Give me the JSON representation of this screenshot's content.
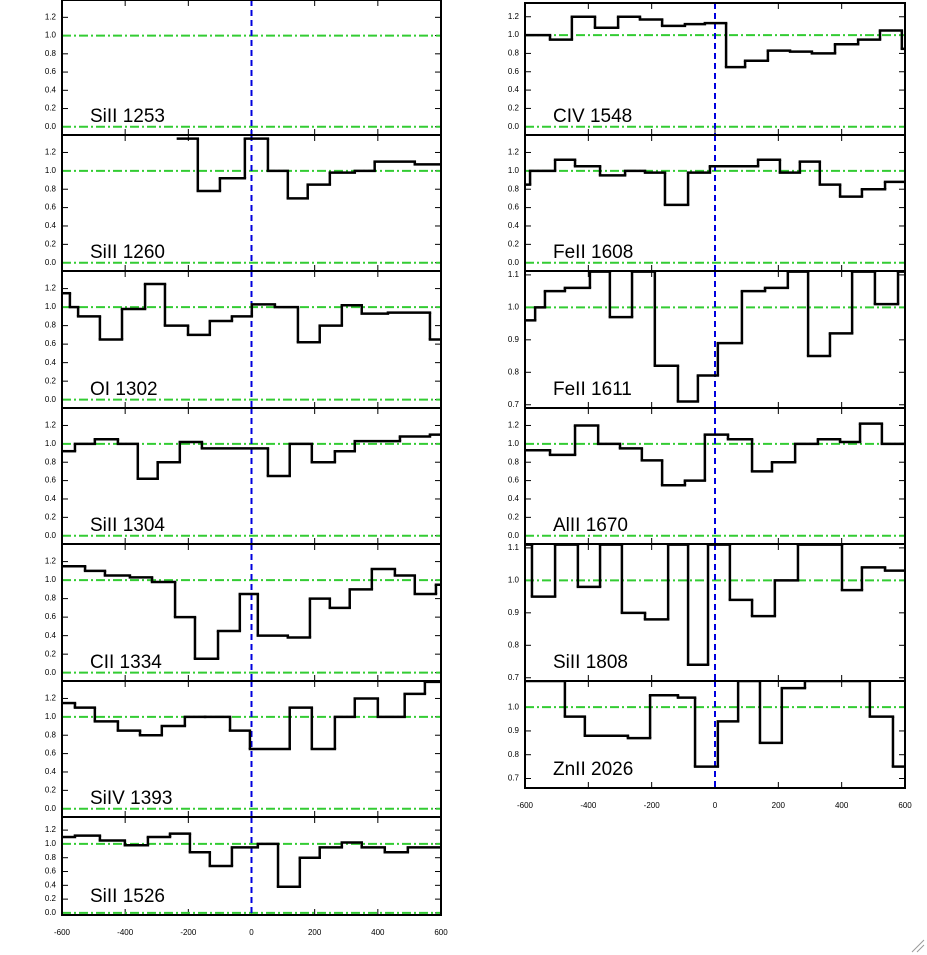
{
  "chart_data": [
    {
      "type": "step",
      "label": "SiII 1253",
      "x": [],
      "values": [],
      "xlim": [
        -600,
        600
      ],
      "ylim": [
        -0.09,
        1.39
      ],
      "xticks": [
        -600,
        -400,
        -200,
        0,
        200,
        400,
        600
      ],
      "show_xticklabels": false,
      "yticks": [
        {
          "value": 0,
          "label": "0.0"
        },
        0.2,
        0.4,
        0.6,
        0.8,
        {
          "value": 1,
          "label": "1.0"
        },
        1.2
      ],
      "hlines": [
        0,
        1
      ],
      "vline": 0,
      "color": "#000000",
      "hline_color": "#33cc33",
      "vline_color": "#0000dd"
    },
    {
      "type": "step",
      "label": "SiII 1260",
      "x": [
        -233,
        -170,
        -100,
        -21,
        52,
        115,
        178,
        248,
        327,
        390,
        517
      ],
      "values": [
        1.35,
        0.78,
        0.92,
        1.35,
        1.0,
        0.7,
        0.85,
        0.98,
        1.0,
        1.1,
        1.07
      ],
      "xlim": [
        -600,
        600
      ],
      "ylim": [
        -0.09,
        1.39
      ],
      "xticks": [
        -600,
        -400,
        -200,
        0,
        200,
        400,
        600
      ],
      "show_xticklabels": false,
      "yticks": [
        {
          "value": 0,
          "label": "0.0"
        },
        0.2,
        0.4,
        0.6,
        0.8,
        {
          "value": 1,
          "label": "1.0"
        },
        1.2
      ],
      "hlines": [
        0,
        1
      ],
      "vline": 0,
      "color": "#000000",
      "hline_color": "#33cc33",
      "vline_color": "#0000dd"
    },
    {
      "type": "step",
      "label": "OI 1302",
      "x": [
        -600,
        -575,
        -549,
        -480,
        -410,
        -337,
        -274,
        -201,
        -132,
        -62,
        1,
        74,
        147,
        216,
        286,
        349,
        432,
        565
      ],
      "values": [
        1.15,
        1.0,
        0.9,
        0.65,
        0.98,
        1.25,
        0.8,
        0.7,
        0.85,
        0.9,
        1.03,
        1.0,
        0.62,
        0.8,
        1.02,
        0.93,
        0.94,
        0.65
      ],
      "xlim": [
        -600,
        600
      ],
      "ylim": [
        -0.09,
        1.39
      ],
      "xticks": [
        -600,
        -400,
        -200,
        0,
        200,
        400,
        600
      ],
      "show_xticklabels": false,
      "yticks": [
        {
          "value": 0,
          "label": "0.0"
        },
        0.2,
        0.4,
        0.6,
        0.8,
        {
          "value": 1,
          "label": "1.0"
        },
        1.2
      ],
      "hlines": [
        0,
        1
      ],
      "vline": 0,
      "color": "#000000",
      "hline_color": "#33cc33",
      "vline_color": "#0000dd"
    },
    {
      "type": "step",
      "label": "SiII 1304",
      "x": [
        -600,
        -559,
        -496,
        -423,
        -360,
        -297,
        -227,
        -157,
        52,
        121,
        191,
        264,
        327,
        470,
        565
      ],
      "values": [
        0.92,
        1.0,
        1.05,
        1.0,
        0.62,
        0.8,
        1.02,
        0.95,
        0.65,
        1.0,
        0.8,
        0.92,
        1.03,
        1.08,
        1.1
      ],
      "xlim": [
        -600,
        600
      ],
      "ylim": [
        -0.09,
        1.39
      ],
      "xticks": [
        -600,
        -400,
        -200,
        0,
        200,
        400,
        600
      ],
      "show_xticklabels": false,
      "yticks": [
        {
          "value": 0,
          "label": "0.0"
        },
        0.2,
        0.4,
        0.6,
        0.8,
        {
          "value": 1,
          "label": "1.0"
        },
        1.2
      ],
      "hlines": [
        0,
        1
      ],
      "vline": 0,
      "color": "#000000",
      "hline_color": "#33cc33",
      "vline_color": "#0000dd"
    },
    {
      "type": "step",
      "label": "CII 1334",
      "x": [
        -600,
        -527,
        -464,
        -385,
        -315,
        -242,
        -179,
        -106,
        -37,
        20,
        115,
        185,
        248,
        311,
        381,
        454,
        517,
        584
      ],
      "values": [
        1.15,
        1.1,
        1.05,
        1.03,
        0.98,
        0.6,
        0.15,
        0.45,
        0.85,
        0.4,
        0.38,
        0.8,
        0.7,
        0.9,
        1.12,
        1.05,
        0.85,
        0.95
      ],
      "xlim": [
        -600,
        600
      ],
      "ylim": [
        -0.09,
        1.39
      ],
      "xticks": [
        -600,
        -400,
        -200,
        0,
        200,
        400,
        600
      ],
      "show_xticklabels": false,
      "yticks": [
        {
          "value": 0,
          "label": "0.0"
        },
        0.2,
        0.4,
        0.6,
        0.8,
        {
          "value": 1,
          "label": "1.0"
        },
        1.2
      ],
      "hlines": [
        0,
        1
      ],
      "vline": 0,
      "color": "#000000",
      "hline_color": "#33cc33",
      "vline_color": "#0000dd"
    },
    {
      "type": "step",
      "label": "SiIV 1393",
      "x": [
        -600,
        -559,
        -496,
        -423,
        -353,
        -284,
        -211,
        -147,
        -68,
        -5,
        121,
        191,
        264,
        327,
        400,
        485,
        549
      ],
      "values": [
        1.15,
        1.1,
        0.95,
        0.85,
        0.8,
        0.9,
        1.0,
        1.0,
        0.85,
        0.65,
        1.1,
        0.65,
        1.0,
        1.2,
        1.0,
        1.25,
        1.38
      ],
      "xlim": [
        -600,
        600
      ],
      "ylim": [
        -0.09,
        1.39
      ],
      "xticks": [
        -600,
        -400,
        -200,
        0,
        200,
        400,
        600
      ],
      "show_xticklabels": false,
      "yticks": [
        {
          "value": 0,
          "label": "0.0"
        },
        0.2,
        0.4,
        0.6,
        0.8,
        {
          "value": 1,
          "label": "1.0"
        },
        1.2
      ],
      "hlines": [
        0,
        1
      ],
      "vline": 0,
      "color": "#000000",
      "hline_color": "#33cc33",
      "vline_color": "#0000dd"
    },
    {
      "type": "step",
      "label": "SiII 1526",
      "x": [
        -600,
        -559,
        -480,
        -401,
        -328,
        -258,
        -195,
        -132,
        -62,
        20,
        84,
        153,
        216,
        286,
        349,
        422,
        495
      ],
      "values": [
        1.1,
        1.12,
        1.05,
        0.98,
        1.1,
        1.15,
        0.88,
        0.68,
        0.95,
        1.0,
        0.38,
        0.8,
        0.95,
        1.02,
        0.95,
        0.88,
        0.95
      ],
      "xlim": [
        -600,
        600
      ],
      "ylim": [
        -0.03,
        1.39
      ],
      "xticks": [
        -600,
        -400,
        -200,
        0,
        200,
        400,
        600
      ],
      "show_xticklabels": true,
      "yticks": [
        {
          "value": 0,
          "label": "0.0"
        },
        0.2,
        0.4,
        0.6,
        0.8,
        {
          "value": 1,
          "label": "1.0"
        },
        1.2
      ],
      "hlines": [
        0,
        1
      ],
      "vline": 0,
      "color": "#000000",
      "hline_color": "#33cc33",
      "vline_color": "#0000dd"
    },
    {
      "type": "step",
      "label": "CIV 1548",
      "x": [
        -600,
        -521,
        -452,
        -379,
        -306,
        -237,
        -167,
        -95,
        -32,
        35,
        95,
        167,
        237,
        306,
        379,
        452,
        521,
        590
      ],
      "values": [
        1.0,
        0.95,
        1.2,
        1.08,
        1.2,
        1.17,
        1.1,
        1.12,
        1.13,
        0.65,
        0.72,
        0.83,
        0.82,
        0.8,
        0.9,
        0.95,
        1.05,
        0.85
      ],
      "xlim": [
        -600,
        600
      ],
      "ylim": [
        -0.09,
        1.35
      ],
      "xticks": [
        -600,
        -400,
        -200,
        0,
        200,
        400,
        600
      ],
      "show_xticklabels": false,
      "yticks": [
        {
          "value": 0,
          "label": "0.0"
        },
        0.2,
        0.4,
        0.6,
        0.8,
        {
          "value": 1,
          "label": "1.0"
        },
        1.2
      ],
      "hlines": [
        0,
        1
      ],
      "vline": 0,
      "color": "#000000",
      "hline_color": "#33cc33",
      "vline_color": "#0000dd"
    },
    {
      "type": "step",
      "label": "FeII 1608",
      "x": [
        -600,
        -584,
        -505,
        -442,
        -363,
        -284,
        -221,
        -158,
        -85,
        -16,
        63,
        136,
        205,
        268,
        331,
        395,
        464,
        537
      ],
      "values": [
        0.85,
        1.0,
        1.12,
        1.05,
        0.95,
        1.0,
        0.98,
        0.63,
        0.98,
        1.05,
        1.05,
        1.12,
        0.98,
        1.1,
        0.85,
        0.72,
        0.8,
        0.88
      ],
      "xlim": [
        -600,
        600
      ],
      "ylim": [
        -0.09,
        1.39
      ],
      "xticks": [
        -600,
        -400,
        -200,
        0,
        200,
        400,
        600
      ],
      "show_xticklabels": false,
      "yticks": [
        {
          "value": 0,
          "label": "0.0"
        },
        0.2,
        0.4,
        0.6,
        0.8,
        {
          "value": 1,
          "label": "1.0"
        },
        1.2
      ],
      "hlines": [
        0,
        1
      ],
      "vline": 0,
      "color": "#000000",
      "hline_color": "#33cc33",
      "vline_color": "#0000dd"
    },
    {
      "type": "step",
      "label": "FeII 1611",
      "x": [
        -600,
        -568,
        -537,
        -474,
        -395,
        -332,
        -262,
        -190,
        -117,
        -54,
        9,
        85,
        158,
        230,
        294,
        363,
        433,
        505,
        578
      ],
      "values": [
        0.96,
        1.0,
        1.05,
        1.06,
        1.11,
        0.97,
        1.11,
        0.82,
        0.71,
        0.79,
        0.89,
        1.05,
        1.06,
        1.11,
        0.85,
        0.92,
        1.11,
        1.01,
        1.11
      ],
      "xlim": [
        -600,
        600
      ],
      "ylim": [
        0.69,
        1.112
      ],
      "xticks": [
        -600,
        -400,
        -200,
        0,
        200,
        400,
        600
      ],
      "show_xticklabels": false,
      "yticks": [
        0.7,
        0.8,
        0.9,
        {
          "value": 1,
          "label": "1.0"
        },
        1.1
      ],
      "hlines": [
        1
      ],
      "vline": 0,
      "color": "#000000",
      "hline_color": "#33cc33",
      "vline_color": "#0000dd"
    },
    {
      "type": "step",
      "label": "AlII 1670",
      "x": [
        -600,
        -521,
        -442,
        -369,
        -300,
        -231,
        -167,
        -95,
        -32,
        41,
        117,
        180,
        253,
        325,
        395,
        458,
        527
      ],
      "values": [
        0.93,
        0.88,
        1.2,
        1.0,
        0.95,
        0.82,
        0.55,
        0.6,
        1.1,
        1.05,
        0.7,
        0.8,
        1.0,
        1.05,
        1.02,
        1.22,
        1.0
      ],
      "xlim": [
        -600,
        600
      ],
      "ylim": [
        -0.09,
        1.39
      ],
      "xticks": [
        -600,
        -400,
        -200,
        0,
        200,
        400,
        600
      ],
      "show_xticklabels": false,
      "yticks": [
        {
          "value": 0,
          "label": "0.0"
        },
        0.2,
        0.4,
        0.6,
        0.8,
        {
          "value": 1,
          "label": "1.0"
        },
        1.2
      ],
      "hlines": [
        0,
        1
      ],
      "vline": 0,
      "color": "#000000",
      "hline_color": "#33cc33",
      "vline_color": "#0000dd"
    },
    {
      "type": "step",
      "label": "SiII 1808",
      "x": [
        -600,
        -578,
        -505,
        -433,
        -363,
        -294,
        -221,
        -148,
        -85,
        -22,
        47,
        117,
        189,
        262,
        401,
        464,
        537
      ],
      "values": [
        1.11,
        0.95,
        1.11,
        0.98,
        1.11,
        0.9,
        0.88,
        1.11,
        0.74,
        1.11,
        0.94,
        0.89,
        1.0,
        1.11,
        0.97,
        1.04,
        1.03
      ],
      "xlim": [
        -600,
        600
      ],
      "ylim": [
        0.69,
        1.112
      ],
      "xticks": [
        -600,
        -400,
        -200,
        0,
        200,
        400,
        600
      ],
      "show_xticklabels": false,
      "yticks": [
        0.7,
        0.8,
        0.9,
        {
          "value": 1,
          "label": "1.0"
        },
        1.1
      ],
      "hlines": [
        1
      ],
      "vline": 0,
      "color": "#000000",
      "hline_color": "#33cc33",
      "vline_color": "#0000dd"
    },
    {
      "type": "step",
      "label": "ZnII 2026",
      "x": [
        -600,
        -474,
        -411,
        -347,
        -275,
        -205,
        -117,
        -63,
        9,
        73,
        142,
        211,
        284,
        489,
        562
      ],
      "values": [
        1.11,
        0.96,
        0.88,
        0.88,
        0.87,
        1.05,
        1.04,
        0.75,
        0.94,
        1.11,
        0.85,
        1.08,
        1.11,
        0.96,
        0.75
      ],
      "xlim": [
        -600,
        600
      ],
      "ylim": [
        0.66,
        1.11
      ],
      "xticks": [
        -600,
        -400,
        -200,
        0,
        200,
        400,
        600
      ],
      "show_xticklabels": true,
      "yticks": [
        0.7,
        0.8,
        0.9,
        {
          "value": 1,
          "label": "1.0"
        }
      ],
      "hlines": [
        1
      ],
      "vline": 0,
      "color": "#000000",
      "hline_color": "#33cc33",
      "vline_color": "#0000dd"
    }
  ]
}
